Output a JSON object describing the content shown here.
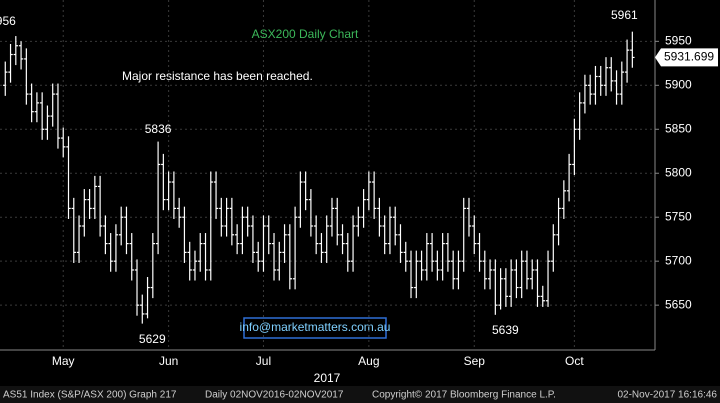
{
  "chart_data": {
    "type": "ohlc",
    "title": "ASX200 Daily Chart",
    "annotation": "Major resistance has been reached.",
    "contact": "info@marketmatters.com.au",
    "x_axis_label": "2017",
    "footer": [
      "AS51 Index (S&P/ASX 200) Graph 217",
      "Daily 02NOV2016-02NOV2017",
      "Copyright© 2017 Bloomberg Finance L.P.",
      "02-Nov-2017 16:16:46"
    ],
    "color": "#ffffff",
    "grid": true,
    "xlim": [
      -1,
      123.3
    ],
    "xticks": [
      {
        "value": 11,
        "label": "May"
      },
      {
        "value": 31,
        "label": "Jun"
      },
      {
        "value": 49,
        "label": "Jul"
      },
      {
        "value": 69,
        "label": "Aug"
      },
      {
        "value": 89,
        "label": "Sep"
      },
      {
        "value": 108,
        "label": "Oct"
      }
    ],
    "ylim": [
      5599,
      5997
    ],
    "yticks": [
      5650,
      5700,
      5750,
      5800,
      5850,
      5900,
      5950
    ],
    "open": [
      5900,
      5915,
      5935,
      5945,
      5930,
      5890,
      5870,
      5880,
      5850,
      5865,
      5890,
      5840,
      5830,
      5760,
      5710,
      5740,
      5770,
      5760,
      5785,
      5740,
      5720,
      5700,
      5730,
      5750,
      5720,
      5690,
      5650,
      5640,
      5670,
      5720,
      5810,
      5770,
      5790,
      5760,
      5750,
      5710,
      5690,
      5700,
      5720,
      5690,
      5790,
      5760,
      5740,
      5760,
      5730,
      5720,
      5750,
      5740,
      5710,
      5700,
      5740,
      5720,
      5690,
      5710,
      5730,
      5680,
      5750,
      5790,
      5770,
      5740,
      5720,
      5710,
      5740,
      5760,
      5730,
      5720,
      5700,
      5740,
      5750,
      5770,
      5790,
      5760,
      5740,
      5720,
      5750,
      5730,
      5710,
      5700,
      5670,
      5700,
      5690,
      5720,
      5700,
      5690,
      5720,
      5700,
      5680,
      5700,
      5760,
      5740,
      5720,
      5700,
      5680,
      5690,
      5650,
      5680,
      5660,
      5690,
      5670,
      5700,
      5680,
      5690,
      5660,
      5655,
      5700,
      5730,
      5760,
      5780,
      5810,
      5850,
      5880,
      5900,
      5890,
      5910,
      5900,
      5920,
      5905,
      5890,
      5915,
      5940
    ],
    "high": [
      5927,
      5947,
      5956,
      5950,
      5942,
      5902,
      5892,
      5892,
      5877,
      5902,
      5902,
      5852,
      5842,
      5772,
      5752,
      5782,
      5782,
      5797,
      5797,
      5752,
      5732,
      5742,
      5762,
      5762,
      5732,
      5702,
      5662,
      5682,
      5732,
      5836,
      5822,
      5802,
      5802,
      5772,
      5762,
      5722,
      5712,
      5732,
      5732,
      5802,
      5802,
      5772,
      5772,
      5772,
      5742,
      5762,
      5762,
      5752,
      5722,
      5752,
      5752,
      5732,
      5722,
      5742,
      5742,
      5762,
      5802,
      5802,
      5782,
      5752,
      5732,
      5752,
      5772,
      5772,
      5742,
      5732,
      5752,
      5762,
      5782,
      5802,
      5802,
      5772,
      5752,
      5762,
      5762,
      5742,
      5722,
      5712,
      5712,
      5712,
      5732,
      5732,
      5712,
      5732,
      5732,
      5712,
      5712,
      5772,
      5772,
      5752,
      5732,
      5712,
      5702,
      5702,
      5692,
      5692,
      5702,
      5702,
      5712,
      5712,
      5702,
      5702,
      5672,
      5712,
      5742,
      5772,
      5792,
      5822,
      5862,
      5892,
      5912,
      5912,
      5922,
      5922,
      5932,
      5932,
      5917,
      5927,
      5952,
      5961
    ],
    "low": [
      5888,
      5903,
      5923,
      5918,
      5878,
      5858,
      5858,
      5838,
      5838,
      5853,
      5828,
      5818,
      5748,
      5698,
      5698,
      5728,
      5748,
      5748,
      5728,
      5708,
      5688,
      5688,
      5718,
      5708,
      5678,
      5638,
      5629,
      5635,
      5658,
      5708,
      5758,
      5758,
      5748,
      5738,
      5698,
      5678,
      5678,
      5688,
      5678,
      5678,
      5748,
      5728,
      5728,
      5718,
      5708,
      5708,
      5728,
      5698,
      5688,
      5688,
      5708,
      5678,
      5678,
      5698,
      5668,
      5668,
      5738,
      5758,
      5728,
      5708,
      5698,
      5698,
      5728,
      5718,
      5708,
      5688,
      5688,
      5728,
      5738,
      5758,
      5748,
      5728,
      5708,
      5708,
      5718,
      5698,
      5688,
      5658,
      5658,
      5678,
      5678,
      5688,
      5678,
      5678,
      5688,
      5668,
      5668,
      5688,
      5728,
      5708,
      5688,
      5668,
      5668,
      5639,
      5645,
      5648,
      5648,
      5658,
      5658,
      5668,
      5668,
      5648,
      5648,
      5648,
      5688,
      5718,
      5748,
      5768,
      5798,
      5838,
      5868,
      5878,
      5878,
      5888,
      5888,
      5893,
      5878,
      5878,
      5903,
      5920
    ],
    "close": [
      5915,
      5935,
      5945,
      5930,
      5890,
      5870,
      5880,
      5850,
      5865,
      5890,
      5840,
      5830,
      5760,
      5710,
      5740,
      5770,
      5760,
      5785,
      5740,
      5720,
      5700,
      5730,
      5750,
      5720,
      5690,
      5650,
      5640,
      5670,
      5720,
      5810,
      5770,
      5790,
      5760,
      5750,
      5710,
      5690,
      5700,
      5720,
      5690,
      5790,
      5760,
      5740,
      5760,
      5730,
      5720,
      5750,
      5740,
      5710,
      5700,
      5740,
      5720,
      5690,
      5710,
      5730,
      5680,
      5750,
      5790,
      5770,
      5740,
      5720,
      5710,
      5740,
      5760,
      5730,
      5720,
      5700,
      5740,
      5750,
      5770,
      5790,
      5760,
      5740,
      5720,
      5750,
      5730,
      5710,
      5700,
      5670,
      5700,
      5690,
      5720,
      5700,
      5690,
      5720,
      5700,
      5680,
      5700,
      5760,
      5740,
      5720,
      5700,
      5680,
      5690,
      5650,
      5680,
      5660,
      5690,
      5670,
      5700,
      5680,
      5690,
      5660,
      5655,
      5700,
      5730,
      5760,
      5780,
      5810,
      5850,
      5880,
      5900,
      5890,
      5910,
      5900,
      5920,
      5905,
      5890,
      5915,
      5940,
      5931.699
    ]
  }
}
